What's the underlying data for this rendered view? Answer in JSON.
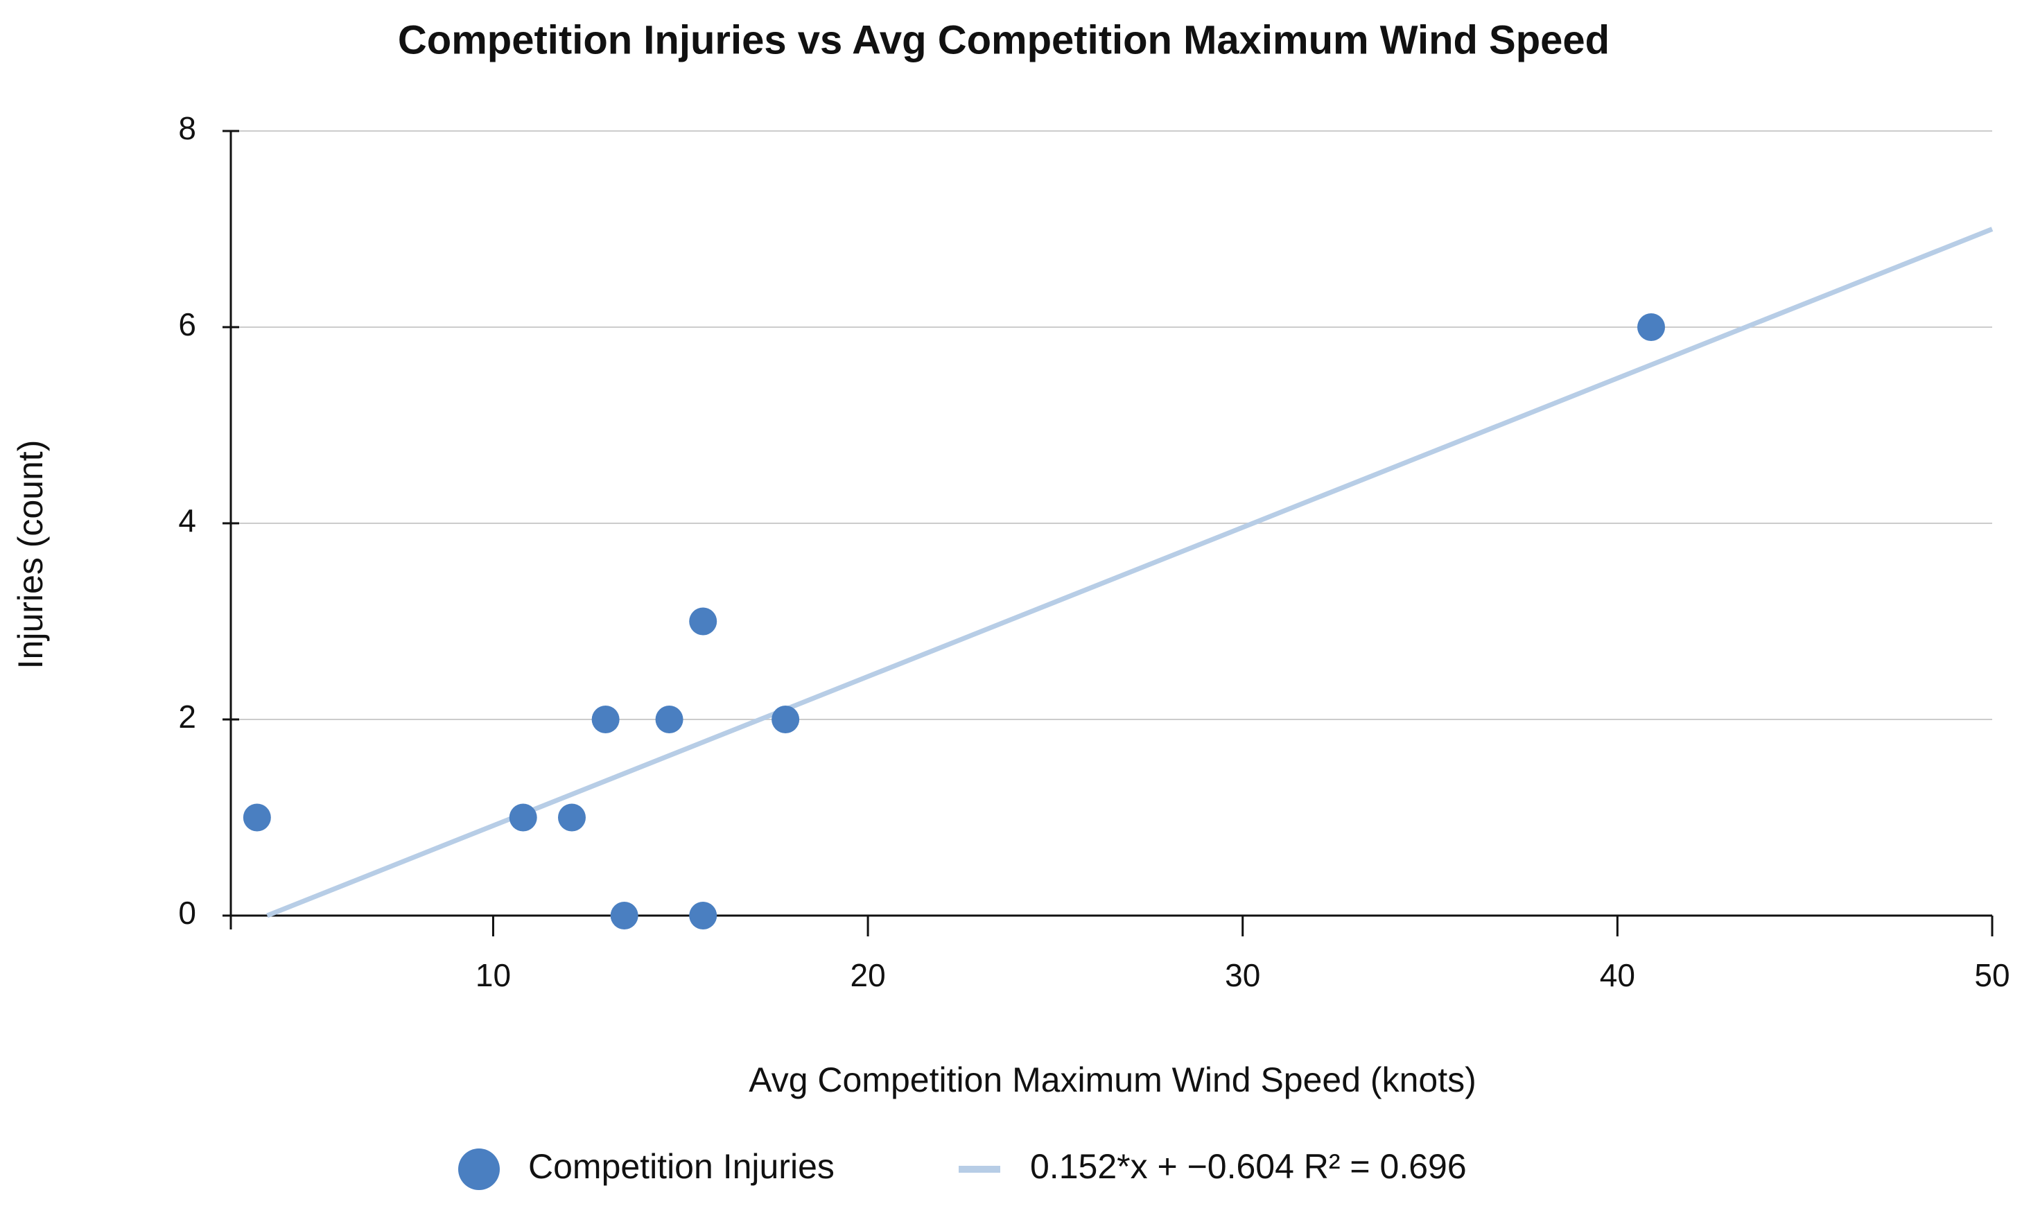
{
  "chart_data": {
    "type": "scatter",
    "title": "Competition Injuries vs Avg Competition Maximum Wind Speed",
    "x_label": "Avg Competition Maximum Wind Speed (knots)",
    "y_label": "Injuries (count)",
    "xlim": [
      3,
      50
    ],
    "xticks": [
      10,
      20,
      30,
      40,
      50
    ],
    "ylim": [
      0,
      8
    ],
    "yticks": [
      0,
      2,
      4,
      6,
      8
    ],
    "grid": true,
    "series": [
      {
        "name": "Competition Injuries",
        "color": "#4a7fc1",
        "type": "scatter",
        "x": [
          3.7,
          10.8,
          12.1,
          13.0,
          13.5,
          14.7,
          15.6,
          15.6,
          17.8,
          40.9
        ],
        "values": [
          1,
          1,
          1,
          2,
          0,
          2,
          3,
          0,
          2,
          6
        ]
      },
      {
        "name": "0.152*x + −0.604 R² = 0.696",
        "color": "#b7cde6",
        "type": "line",
        "x": [
          3.97,
          50
        ],
        "values": [
          0,
          7
        ]
      }
    ]
  }
}
